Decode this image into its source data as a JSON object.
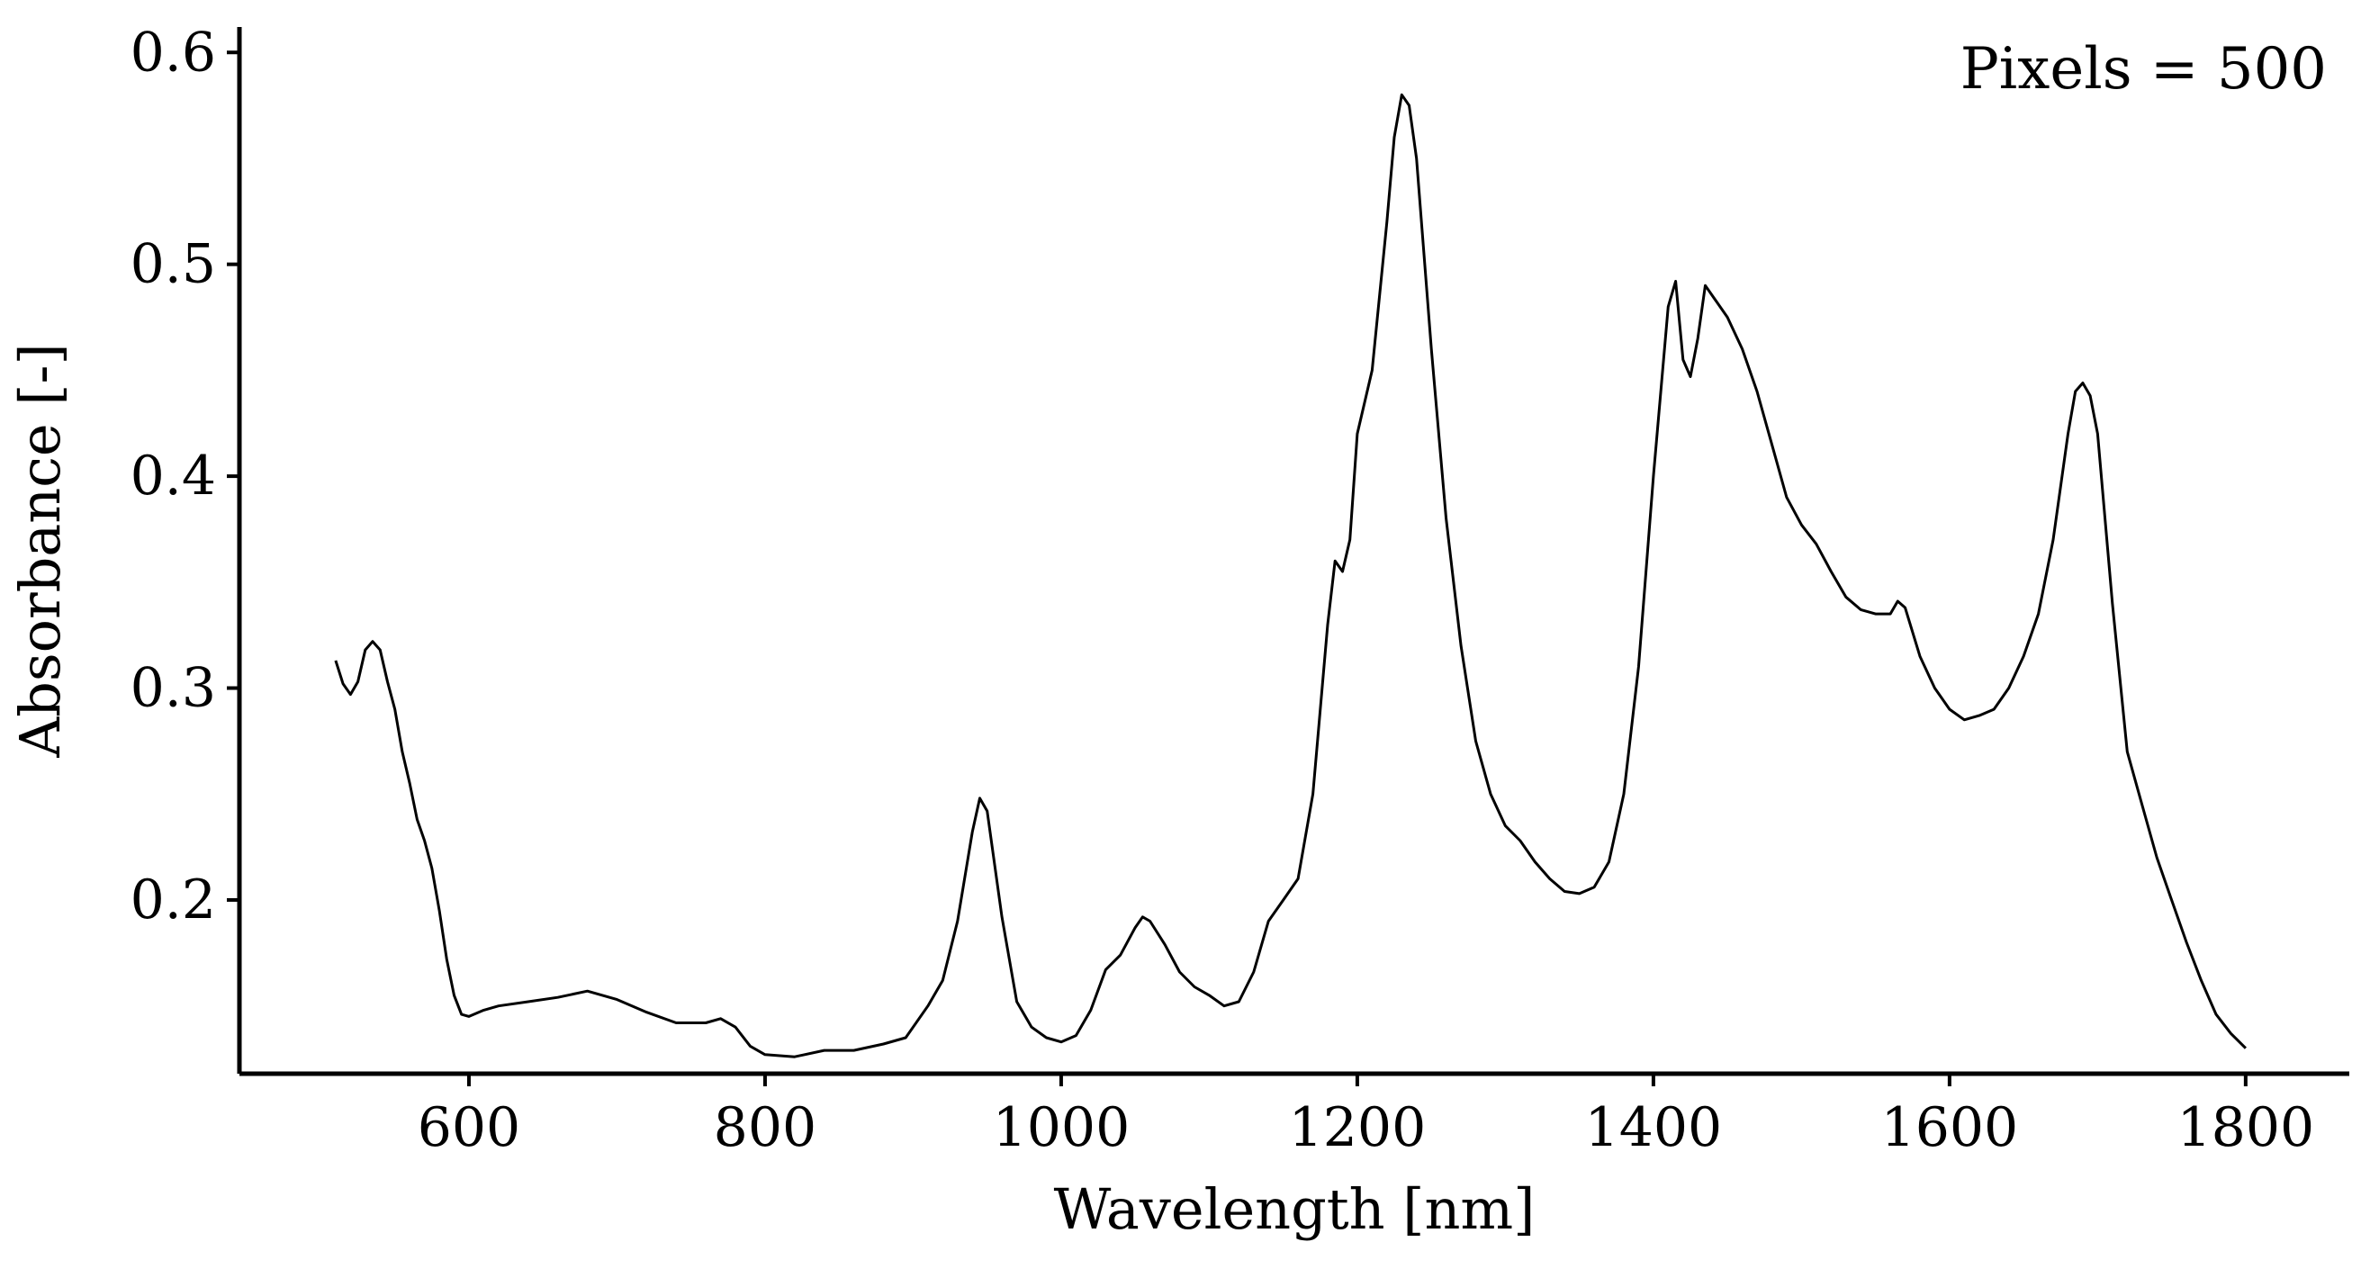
{
  "chart_data": {
    "type": "line",
    "xlabel": "Wavelength [nm]",
    "ylabel": "Absorbance [-]",
    "annotation": "Pixels = 500",
    "xlim": [
      445,
      1870
    ],
    "ylim": [
      0.118,
      0.612
    ],
    "xticks": [
      600,
      800,
      1000,
      1200,
      1400,
      1600,
      1800
    ],
    "yticks": [
      0.2,
      0.3,
      0.4,
      0.5,
      0.6
    ],
    "xtick_labels": [
      "600",
      "800",
      "1000",
      "1200",
      "1400",
      "1600",
      "1800"
    ],
    "ytick_labels": [
      "0.2",
      "0.3",
      "0.4",
      "0.5",
      "0.6"
    ],
    "grid": false,
    "line_color": "#000000",
    "series": [
      {
        "x": [
          510,
          515,
          520,
          525,
          530,
          535,
          540,
          545,
          550,
          555,
          560,
          565,
          570,
          575,
          580,
          585,
          590,
          595,
          600,
          610,
          620,
          640,
          660,
          680,
          700,
          720,
          740,
          760,
          770,
          780,
          790,
          800,
          820,
          840,
          860,
          880,
          895,
          910,
          920,
          930,
          940,
          945,
          950,
          960,
          970,
          980,
          990,
          1000,
          1010,
          1020,
          1030,
          1040,
          1050,
          1055,
          1060,
          1070,
          1080,
          1090,
          1100,
          1110,
          1120,
          1130,
          1140,
          1150,
          1160,
          1170,
          1175,
          1180,
          1185,
          1190,
          1195,
          1200,
          1210,
          1220,
          1225,
          1230,
          1235,
          1240,
          1250,
          1260,
          1270,
          1280,
          1290,
          1300,
          1310,
          1320,
          1330,
          1340,
          1350,
          1360,
          1370,
          1380,
          1390,
          1400,
          1410,
          1415,
          1420,
          1425,
          1430,
          1435,
          1440,
          1450,
          1460,
          1470,
          1480,
          1490,
          1500,
          1510,
          1520,
          1530,
          1540,
          1550,
          1560,
          1565,
          1570,
          1580,
          1590,
          1600,
          1610,
          1620,
          1630,
          1640,
          1650,
          1660,
          1670,
          1680,
          1685,
          1690,
          1695,
          1700,
          1710,
          1720,
          1730,
          1740,
          1750,
          1760,
          1770,
          1780,
          1790,
          1800
        ],
        "y": [
          0.313,
          0.302,
          0.297,
          0.303,
          0.318,
          0.322,
          0.318,
          0.303,
          0.29,
          0.27,
          0.255,
          0.238,
          0.228,
          0.215,
          0.195,
          0.172,
          0.155,
          0.146,
          0.145,
          0.148,
          0.15,
          0.152,
          0.154,
          0.157,
          0.153,
          0.147,
          0.142,
          0.142,
          0.144,
          0.14,
          0.131,
          0.127,
          0.126,
          0.129,
          0.129,
          0.132,
          0.135,
          0.15,
          0.162,
          0.19,
          0.232,
          0.248,
          0.242,
          0.192,
          0.152,
          0.14,
          0.135,
          0.133,
          0.136,
          0.148,
          0.167,
          0.174,
          0.187,
          0.192,
          0.19,
          0.179,
          0.166,
          0.159,
          0.155,
          0.15,
          0.152,
          0.166,
          0.19,
          0.2,
          0.21,
          0.25,
          0.29,
          0.33,
          0.36,
          0.355,
          0.37,
          0.42,
          0.45,
          0.52,
          0.56,
          0.58,
          0.575,
          0.55,
          0.46,
          0.38,
          0.32,
          0.275,
          0.25,
          0.235,
          0.228,
          0.218,
          0.21,
          0.204,
          0.203,
          0.206,
          0.218,
          0.25,
          0.31,
          0.4,
          0.48,
          0.492,
          0.455,
          0.447,
          0.465,
          0.49,
          0.485,
          0.475,
          0.46,
          0.44,
          0.415,
          0.39,
          0.377,
          0.368,
          0.355,
          0.343,
          0.337,
          0.335,
          0.335,
          0.341,
          0.338,
          0.315,
          0.3,
          0.29,
          0.285,
          0.287,
          0.29,
          0.3,
          0.315,
          0.335,
          0.37,
          0.42,
          0.44,
          0.444,
          0.438,
          0.42,
          0.34,
          0.27,
          0.245,
          0.22,
          0.2,
          0.18,
          0.162,
          0.146,
          0.137,
          0.13
        ]
      }
    ]
  }
}
